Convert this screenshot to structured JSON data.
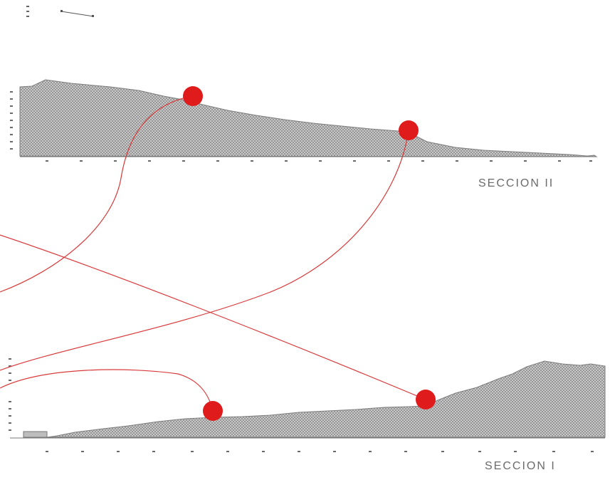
{
  "sections": [
    {
      "id": "section-ii",
      "label": "SECCION II"
    },
    {
      "id": "section-i",
      "label": "SECCION I"
    }
  ],
  "colors": {
    "terrain_fill": "#9a9a9a",
    "terrain_outline": "#7d7d7d",
    "marker": "#e01b1b",
    "connector": "#d83a3a",
    "label": "#6b6b6b"
  },
  "icons": [
    "scale-bar-icon",
    "vertical-scale-icon"
  ]
}
